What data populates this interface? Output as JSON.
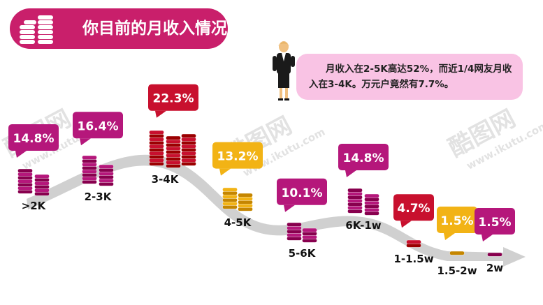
{
  "header": {
    "title": "你目前的月收入情况",
    "icon": "stacked-coins-icon"
  },
  "callout": {
    "text": "月收入在2-5K高达52%，而近1/4网友月收入在3-4K。万元户竟然有7.7%。",
    "figure": "businesswoman-icon"
  },
  "watermark": {
    "text": "酷图网",
    "url": "www.ikutu.com"
  },
  "colors": {
    "magenta": "#b5177b",
    "red": "#c8102e",
    "gold": "#f2b315",
    "title_bg": "#c91f6b",
    "callout_bg": "#f9c3e4",
    "arrow": "#d0d0d0"
  },
  "chart_data": {
    "type": "bar",
    "title": "",
    "xlabel": "",
    "ylabel": "",
    "categories": [
      ">2K",
      "2-3K",
      "3-4K",
      "4-5K",
      "5-6K",
      "6K-1w",
      "1-1.5w",
      "1.5-2w",
      "2w"
    ],
    "values": [
      14.8,
      16.4,
      22.3,
      13.2,
      10.1,
      14.8,
      4.7,
      1.5,
      1.5
    ],
    "value_labels": [
      "14.8%",
      "16.4%",
      "22.3%",
      "13.2%",
      "10.1%",
      "14.8%",
      "4.7%",
      "1.5%",
      "1.5%"
    ],
    "colors": [
      "magenta",
      "magenta",
      "red",
      "gold",
      "magenta",
      "magenta",
      "red",
      "gold",
      "magenta"
    ],
    "unit": "%"
  }
}
